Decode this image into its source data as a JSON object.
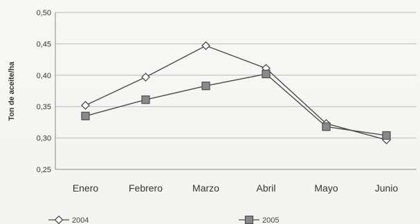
{
  "chart_data": {
    "type": "line",
    "title": "",
    "xlabel": "",
    "ylabel": "Ton de aceite/ha",
    "categories": [
      "Enero",
      "Febrero",
      "Marzo",
      "Abril",
      "Mayo",
      "Junio"
    ],
    "ylim": [
      0.25,
      0.5
    ],
    "yticks": [
      "0,50",
      "0,45",
      "0,40",
      "0,35",
      "0,30",
      "0,25"
    ],
    "grid": true,
    "legend_position": "bottom",
    "series": [
      {
        "name": "2004",
        "marker": "diamond",
        "color": "#4a4a4a",
        "values": [
          0.352,
          0.397,
          0.447,
          0.411,
          0.323,
          0.297
        ]
      },
      {
        "name": "2005",
        "marker": "square",
        "color": "#4a4a4a",
        "values": [
          0.335,
          0.361,
          0.383,
          0.402,
          0.318,
          0.304
        ]
      }
    ]
  }
}
